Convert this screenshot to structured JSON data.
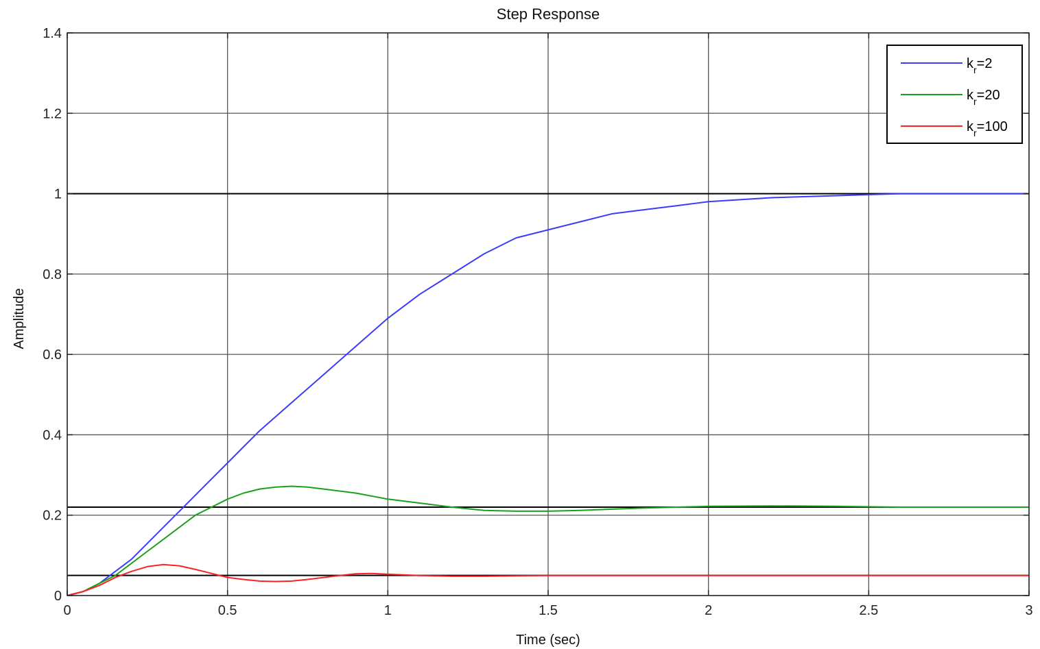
{
  "chart_data": {
    "type": "line",
    "title": "Step Response",
    "xlabel": "Time (sec)",
    "ylabel": "Amplitude",
    "xlim": [
      0,
      3
    ],
    "ylim": [
      0,
      1.4
    ],
    "x_ticks": [
      "0",
      "0.5",
      "1",
      "1.5",
      "2",
      "2.5",
      "3"
    ],
    "y_ticks": [
      "0",
      "0.2",
      "0.4",
      "0.6",
      "0.8",
      "1",
      "1.2",
      "1.4"
    ],
    "grid": true,
    "legend_position": "top-right",
    "reference_lines": [
      1.0,
      0.22,
      0.05
    ],
    "series": [
      {
        "name": "k_r=2",
        "legend_base": "k",
        "legend_sub": "r",
        "legend_rest": "=2",
        "color": "#3b3bff",
        "x": [
          0,
          0.05,
          0.1,
          0.15,
          0.2,
          0.25,
          0.3,
          0.35,
          0.4,
          0.45,
          0.5,
          0.55,
          0.6,
          0.7,
          0.8,
          0.9,
          1.0,
          1.1,
          1.2,
          1.3,
          1.4,
          1.5,
          1.6,
          1.7,
          1.8,
          1.9,
          2.0,
          2.2,
          2.4,
          2.6,
          2.8,
          3.0
        ],
        "y": [
          0,
          0.01,
          0.03,
          0.06,
          0.09,
          0.13,
          0.17,
          0.21,
          0.25,
          0.29,
          0.33,
          0.37,
          0.41,
          0.48,
          0.55,
          0.62,
          0.69,
          0.75,
          0.8,
          0.85,
          0.89,
          0.91,
          0.93,
          0.95,
          0.96,
          0.97,
          0.98,
          0.99,
          0.995,
          1.0,
          1.0,
          1.0
        ]
      },
      {
        "name": "k_r=20",
        "legend_base": "k",
        "legend_sub": "r",
        "legend_rest": "=20",
        "color": "#1aa01a",
        "x": [
          0,
          0.05,
          0.1,
          0.15,
          0.2,
          0.25,
          0.3,
          0.35,
          0.4,
          0.45,
          0.5,
          0.55,
          0.6,
          0.65,
          0.7,
          0.75,
          0.8,
          0.9,
          1.0,
          1.1,
          1.2,
          1.3,
          1.4,
          1.5,
          1.6,
          1.7,
          1.8,
          1.9,
          2.0,
          2.2,
          2.4,
          2.6,
          2.8,
          3.0
        ],
        "y": [
          0,
          0.01,
          0.03,
          0.05,
          0.08,
          0.11,
          0.14,
          0.17,
          0.2,
          0.22,
          0.24,
          0.255,
          0.265,
          0.27,
          0.272,
          0.27,
          0.265,
          0.255,
          0.24,
          0.23,
          0.22,
          0.212,
          0.21,
          0.21,
          0.212,
          0.215,
          0.218,
          0.22,
          0.222,
          0.223,
          0.222,
          0.22,
          0.22,
          0.22
        ]
      },
      {
        "name": "k_r=100",
        "legend_base": "k",
        "legend_sub": "r",
        "legend_rest": "=100",
        "color": "#ff2020",
        "x": [
          0,
          0.05,
          0.1,
          0.15,
          0.2,
          0.25,
          0.3,
          0.35,
          0.4,
          0.45,
          0.5,
          0.55,
          0.6,
          0.65,
          0.7,
          0.75,
          0.8,
          0.85,
          0.9,
          0.95,
          1.0,
          1.1,
          1.2,
          1.3,
          1.4,
          1.5,
          1.7,
          2.0,
          2.5,
          3.0
        ],
        "y": [
          0,
          0.01,
          0.025,
          0.045,
          0.06,
          0.072,
          0.077,
          0.074,
          0.065,
          0.055,
          0.045,
          0.04,
          0.036,
          0.035,
          0.036,
          0.04,
          0.045,
          0.05,
          0.054,
          0.055,
          0.053,
          0.05,
          0.048,
          0.048,
          0.049,
          0.05,
          0.05,
          0.05,
          0.05,
          0.05
        ]
      }
    ]
  }
}
